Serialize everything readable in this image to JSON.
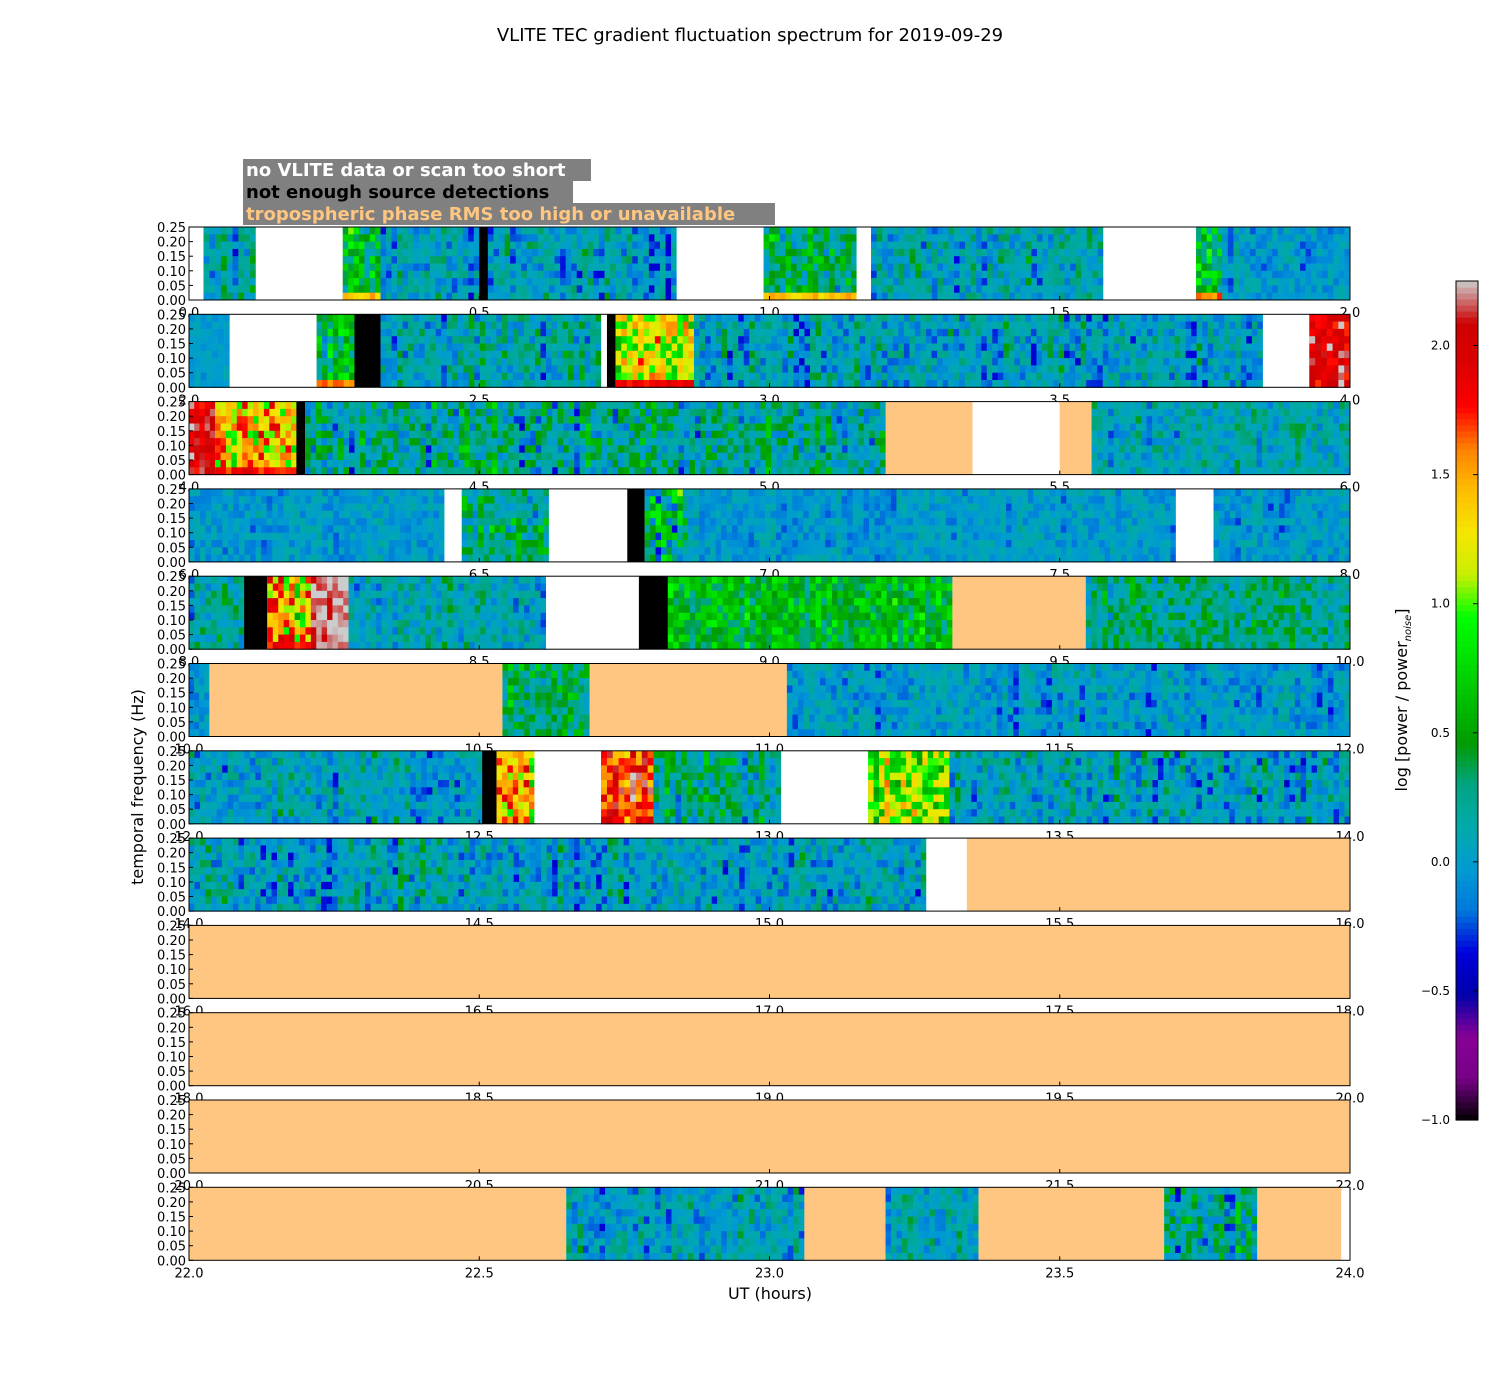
{
  "chart_data": {
    "type": "heatmap",
    "title": "VLITE TEC gradient fluctuation spectrum for 2019-09-29",
    "xlabel": "UT (hours)",
    "ylabel": "temporal frequency (Hz)",
    "colorbar": {
      "label_prefix": "log [power / power",
      "label_sub": "noise",
      "label_suffix": "]",
      "range": [
        -1.0,
        2.25
      ],
      "ticks": [
        "−1.0",
        "−0.5",
        "0.0",
        "0.5",
        "1.0",
        "1.5",
        "2.0"
      ],
      "tick_values": [
        -1.0,
        -0.5,
        0.0,
        0.5,
        1.0,
        1.5,
        2.0
      ],
      "colormap": "nipy_spectral"
    },
    "ylim": [
      0,
      0.25
    ],
    "yticks": [
      "0.00",
      "0.05",
      "0.10",
      "0.15",
      "0.20",
      "0.25"
    ],
    "ytick_values": [
      0.0,
      0.05,
      0.1,
      0.15,
      0.2,
      0.25
    ],
    "legend": [
      {
        "text": "no VLITE data or scan too short",
        "color": "#ffffff",
        "meaning": "blank"
      },
      {
        "text": "not enough source detections",
        "color": "#000000",
        "meaning": "black"
      },
      {
        "text": "tropospheric phase RMS too high or unavailable",
        "color": "#ffc682",
        "meaning": "tan"
      }
    ],
    "category_colors": {
      "blank": "#ffffff",
      "black": "#000000",
      "tan": "#ffc682"
    },
    "panels": [
      {
        "xlim": [
          0.0,
          2.0
        ],
        "xticks": [
          "0.0",
          "0.5",
          "1.0",
          "1.5",
          "2.0"
        ],
        "xtick_values": [
          0,
          0.5,
          1,
          1.5,
          2
        ],
        "segments": [
          {
            "start": 0.0,
            "end": 0.025,
            "kind": "blank"
          },
          {
            "start": 0.025,
            "end": 0.115,
            "kind": "data",
            "level": 0.1,
            "activity": 0.6
          },
          {
            "start": 0.115,
            "end": 0.265,
            "kind": "blank"
          },
          {
            "start": 0.265,
            "end": 0.33,
            "kind": "data",
            "level": 0.45,
            "activity": 0.9,
            "low": 1.4
          },
          {
            "start": 0.33,
            "end": 0.5,
            "kind": "data",
            "level": 0.05,
            "activity": 0.6
          },
          {
            "start": 0.5,
            "end": 0.515,
            "kind": "black"
          },
          {
            "start": 0.515,
            "end": 0.84,
            "kind": "data",
            "level": 0.05,
            "activity": 0.6
          },
          {
            "start": 0.84,
            "end": 0.99,
            "kind": "blank"
          },
          {
            "start": 0.99,
            "end": 1.15,
            "kind": "data",
            "level": 0.35,
            "activity": 0.8,
            "low": 1.4
          },
          {
            "start": 1.15,
            "end": 1.175,
            "kind": "blank"
          },
          {
            "start": 1.175,
            "end": 1.575,
            "kind": "data",
            "level": 0.1,
            "activity": 0.6
          },
          {
            "start": 1.575,
            "end": 1.735,
            "kind": "blank"
          },
          {
            "start": 1.735,
            "end": 1.78,
            "kind": "data",
            "level": 0.55,
            "activity": 0.9,
            "low": 1.6
          },
          {
            "start": 1.78,
            "end": 2.0,
            "kind": "data",
            "level": 0.0,
            "activity": 0.4
          }
        ]
      },
      {
        "xlim": [
          2.0,
          4.0
        ],
        "xticks": [
          "2.0",
          "2.5",
          "3.0",
          "3.5",
          "4.0"
        ],
        "xtick_values": [
          2,
          2.5,
          3,
          3.5,
          4
        ],
        "segments": [
          {
            "start": 2.0,
            "end": 2.07,
            "kind": "data",
            "level": 0.0,
            "activity": 0.2
          },
          {
            "start": 2.07,
            "end": 2.22,
            "kind": "blank"
          },
          {
            "start": 2.22,
            "end": 2.285,
            "kind": "data",
            "level": 0.5,
            "activity": 0.9,
            "low": 1.6
          },
          {
            "start": 2.285,
            "end": 2.33,
            "kind": "black"
          },
          {
            "start": 2.33,
            "end": 2.71,
            "kind": "data",
            "level": 0.1,
            "activity": 0.6
          },
          {
            "start": 2.71,
            "end": 2.72,
            "kind": "blank"
          },
          {
            "start": 2.72,
            "end": 2.735,
            "kind": "black"
          },
          {
            "start": 2.735,
            "end": 2.87,
            "kind": "data",
            "level": 1.1,
            "activity": 1.0,
            "low": 1.8
          },
          {
            "start": 2.87,
            "end": 3.85,
            "kind": "data",
            "level": 0.05,
            "activity": 0.6
          },
          {
            "start": 3.85,
            "end": 3.93,
            "kind": "blank"
          },
          {
            "start": 3.93,
            "end": 4.0,
            "kind": "data",
            "level": 2.0,
            "activity": 0.5
          }
        ]
      },
      {
        "xlim": [
          4.0,
          6.0
        ],
        "xticks": [
          "4.0",
          "4.5",
          "5.0",
          "5.5",
          "6.0"
        ],
        "xtick_values": [
          4,
          4.5,
          5,
          5.5,
          6
        ],
        "segments": [
          {
            "start": 4.0,
            "end": 4.045,
            "kind": "data",
            "level": 1.95,
            "activity": 0.5
          },
          {
            "start": 4.045,
            "end": 4.185,
            "kind": "data",
            "level": 1.4,
            "activity": 1.0,
            "low": 1.8
          },
          {
            "start": 4.185,
            "end": 4.2,
            "kind": "black"
          },
          {
            "start": 4.2,
            "end": 4.9,
            "kind": "data",
            "level": 0.2,
            "activity": 0.8
          },
          {
            "start": 4.9,
            "end": 5.2,
            "kind": "data",
            "level": 0.2,
            "activity": 0.7
          },
          {
            "start": 5.2,
            "end": 5.35,
            "kind": "tan"
          },
          {
            "start": 5.35,
            "end": 5.5,
            "kind": "blank"
          },
          {
            "start": 5.5,
            "end": 5.555,
            "kind": "tan"
          },
          {
            "start": 5.555,
            "end": 6.0,
            "kind": "data",
            "level": 0.1,
            "activity": 0.5
          }
        ]
      },
      {
        "xlim": [
          6.0,
          8.0
        ],
        "xticks": [
          "6.0",
          "6.5",
          "7.0",
          "7.5",
          "8.0"
        ],
        "xtick_values": [
          6,
          6.5,
          7,
          7.5,
          8
        ],
        "segments": [
          {
            "start": 6.0,
            "end": 6.44,
            "kind": "data",
            "level": 0.0,
            "activity": 0.35
          },
          {
            "start": 6.44,
            "end": 6.47,
            "kind": "blank"
          },
          {
            "start": 6.47,
            "end": 6.62,
            "kind": "data",
            "level": 0.35,
            "activity": 0.8
          },
          {
            "start": 6.62,
            "end": 6.755,
            "kind": "blank"
          },
          {
            "start": 6.755,
            "end": 6.785,
            "kind": "black"
          },
          {
            "start": 6.785,
            "end": 6.86,
            "kind": "data",
            "level": 0.3,
            "activity": 1.3
          },
          {
            "start": 6.86,
            "end": 7.7,
            "kind": "data",
            "level": 0.0,
            "activity": 0.35
          },
          {
            "start": 7.7,
            "end": 7.765,
            "kind": "blank"
          },
          {
            "start": 7.765,
            "end": 8.0,
            "kind": "data",
            "level": 0.0,
            "activity": 0.4
          }
        ]
      },
      {
        "xlim": [
          8.0,
          10.0
        ],
        "xticks": [
          "8.0",
          "8.5",
          "9.0",
          "9.5",
          "10.0"
        ],
        "xtick_values": [
          8,
          8.5,
          9,
          9.5,
          10
        ],
        "segments": [
          {
            "start": 8.0,
            "end": 8.095,
            "kind": "data",
            "level": 0.15,
            "activity": 0.6
          },
          {
            "start": 8.095,
            "end": 8.135,
            "kind": "black"
          },
          {
            "start": 8.135,
            "end": 8.21,
            "kind": "data",
            "level": 1.3,
            "activity": 1.0,
            "low": 1.8
          },
          {
            "start": 8.21,
            "end": 8.275,
            "kind": "data",
            "level": 2.2,
            "activity": 0.3
          },
          {
            "start": 8.275,
            "end": 8.615,
            "kind": "data",
            "level": 0.1,
            "activity": 0.5
          },
          {
            "start": 8.615,
            "end": 8.775,
            "kind": "blank"
          },
          {
            "start": 8.775,
            "end": 8.825,
            "kind": "black"
          },
          {
            "start": 8.825,
            "end": 9.315,
            "kind": "data",
            "level": 0.55,
            "activity": 0.6
          },
          {
            "start": 9.315,
            "end": 9.545,
            "kind": "tan"
          },
          {
            "start": 9.545,
            "end": 10.0,
            "kind": "data",
            "level": 0.25,
            "activity": 0.6
          }
        ]
      },
      {
        "xlim": [
          10.0,
          12.0
        ],
        "xticks": [
          "10.0",
          "10.5",
          "11.0",
          "11.5",
          "12.0"
        ],
        "xtick_values": [
          10,
          10.5,
          11,
          11.5,
          12
        ],
        "segments": [
          {
            "start": 10.0,
            "end": 10.035,
            "kind": "data",
            "level": 0.0,
            "activity": 0.4
          },
          {
            "start": 10.035,
            "end": 10.54,
            "kind": "tan"
          },
          {
            "start": 10.54,
            "end": 10.69,
            "kind": "data",
            "level": 0.35,
            "activity": 0.7
          },
          {
            "start": 10.69,
            "end": 11.03,
            "kind": "tan"
          },
          {
            "start": 11.03,
            "end": 12.0,
            "kind": "data",
            "level": 0.0,
            "activity": 0.45
          }
        ]
      },
      {
        "xlim": [
          12.0,
          14.0
        ],
        "xticks": [
          "12.0",
          "12.5",
          "13.0",
          "13.5",
          "14.0"
        ],
        "xtick_values": [
          12,
          12.5,
          13,
          13.5,
          14
        ],
        "segments": [
          {
            "start": 12.0,
            "end": 12.505,
            "kind": "data",
            "level": 0.05,
            "activity": 0.55
          },
          {
            "start": 12.505,
            "end": 12.53,
            "kind": "black"
          },
          {
            "start": 12.53,
            "end": 12.595,
            "kind": "data",
            "level": 1.4,
            "activity": 1.0
          },
          {
            "start": 12.595,
            "end": 12.71,
            "kind": "blank"
          },
          {
            "start": 12.71,
            "end": 12.8,
            "kind": "data",
            "level": 1.8,
            "activity": 0.8
          },
          {
            "start": 12.8,
            "end": 13.02,
            "kind": "data",
            "level": 0.2,
            "activity": 0.7
          },
          {
            "start": 13.02,
            "end": 13.17,
            "kind": "blank"
          },
          {
            "start": 13.17,
            "end": 13.31,
            "kind": "data",
            "level": 0.95,
            "activity": 0.9
          },
          {
            "start": 13.31,
            "end": 14.0,
            "kind": "data",
            "level": 0.05,
            "activity": 0.6
          }
        ]
      },
      {
        "xlim": [
          14.0,
          16.0
        ],
        "xticks": [
          "14.0",
          "14.5",
          "15.0",
          "15.5",
          "16.0"
        ],
        "xtick_values": [
          14,
          14.5,
          15,
          15.5,
          16
        ],
        "segments": [
          {
            "start": 14.0,
            "end": 15.27,
            "kind": "data",
            "level": 0.05,
            "activity": 0.6
          },
          {
            "start": 15.27,
            "end": 15.34,
            "kind": "blank"
          },
          {
            "start": 15.34,
            "end": 16.0,
            "kind": "tan"
          }
        ]
      },
      {
        "xlim": [
          16.0,
          18.0
        ],
        "xticks": [
          "16.0",
          "16.5",
          "17.0",
          "17.5",
          "18.0"
        ],
        "xtick_values": [
          16,
          16.5,
          17,
          17.5,
          18
        ],
        "segments": [
          {
            "start": 16.0,
            "end": 18.0,
            "kind": "tan"
          }
        ]
      },
      {
        "xlim": [
          18.0,
          20.0
        ],
        "xticks": [
          "18.0",
          "18.5",
          "19.0",
          "19.5",
          "20.0"
        ],
        "xtick_values": [
          18,
          18.5,
          19,
          19.5,
          20
        ],
        "segments": [
          {
            "start": 18.0,
            "end": 20.0,
            "kind": "tan"
          }
        ]
      },
      {
        "xlim": [
          20.0,
          22.0
        ],
        "xticks": [
          "20.0",
          "20.5",
          "21.0",
          "21.5",
          "22.0"
        ],
        "xtick_values": [
          20,
          20.5,
          21,
          21.5,
          22
        ],
        "segments": [
          {
            "start": 20.0,
            "end": 22.0,
            "kind": "tan"
          }
        ]
      },
      {
        "xlim": [
          22.0,
          24.0
        ],
        "xticks": [
          "22.0",
          "22.5",
          "23.0",
          "23.5",
          "24.0"
        ],
        "xtick_values": [
          22,
          22.5,
          23,
          23.5,
          24
        ],
        "segments": [
          {
            "start": 22.0,
            "end": 22.65,
            "kind": "tan"
          },
          {
            "start": 22.65,
            "end": 23.06,
            "kind": "data",
            "level": 0.05,
            "activity": 0.55
          },
          {
            "start": 23.06,
            "end": 23.2,
            "kind": "tan"
          },
          {
            "start": 23.2,
            "end": 23.36,
            "kind": "data",
            "level": 0.05,
            "activity": 0.5
          },
          {
            "start": 23.36,
            "end": 23.68,
            "kind": "tan"
          },
          {
            "start": 23.68,
            "end": 23.84,
            "kind": "data",
            "level": 0.2,
            "activity": 0.8
          },
          {
            "start": 23.84,
            "end": 23.985,
            "kind": "tan"
          },
          {
            "start": 23.985,
            "end": 24.0,
            "kind": "blank"
          }
        ]
      }
    ]
  }
}
